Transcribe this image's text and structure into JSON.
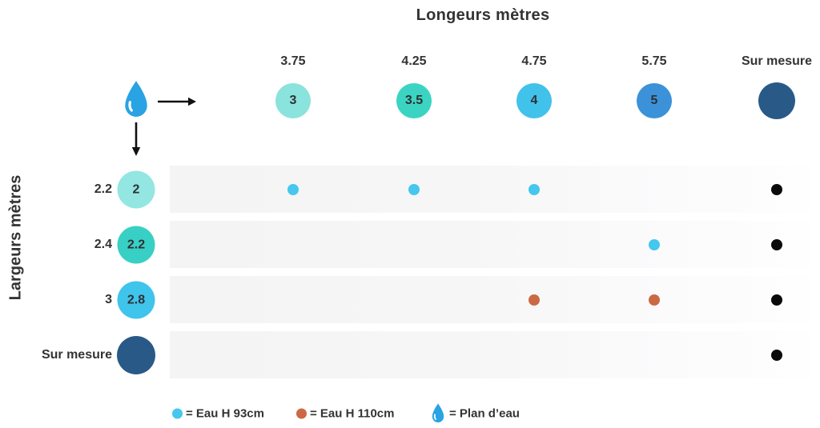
{
  "title": "Longeurs mètres",
  "y_axis_title": "Largeurs mètres",
  "columns": [
    {
      "header": "3.75",
      "bubble": "3",
      "color": "#8AE3DC"
    },
    {
      "header": "4.25",
      "bubble": "3.5",
      "color": "#3BD4C2"
    },
    {
      "header": "4.75",
      "bubble": "4",
      "color": "#41C2EB"
    },
    {
      "header": "5.75",
      "bubble": "5",
      "color": "#3B92D9"
    },
    {
      "header": "Sur mesure",
      "bubble": "",
      "color": "#295A87"
    }
  ],
  "rows": [
    {
      "label": "2.2",
      "bubble": "2",
      "color": "#93E6E1",
      "dots": [
        "cyan",
        "cyan",
        "cyan",
        null,
        "black"
      ]
    },
    {
      "label": "2.4",
      "bubble": "2.2",
      "color": "#38D0C4",
      "dots": [
        null,
        null,
        null,
        "cyan",
        "black"
      ]
    },
    {
      "label": "3",
      "bubble": "2.8",
      "color": "#3FC4EC",
      "dots": [
        null,
        null,
        "orange",
        "orange",
        "black"
      ]
    },
    {
      "label": "Sur mesure",
      "bubble": "",
      "color": "#295A87",
      "dots": [
        null,
        null,
        null,
        null,
        "black"
      ]
    }
  ],
  "dot_colors": {
    "cyan": "#45C7EE",
    "orange": "#CB6945",
    "black": "#0A0A0A"
  },
  "colors": {
    "drop_blue": "#29A3E3",
    "text": "#333333"
  },
  "legend": {
    "items": [
      {
        "icon": "cyan-dot-icon",
        "label": "= Eau H 93cm"
      },
      {
        "icon": "orange-dot-icon",
        "label": "= Eau H 110cm"
      },
      {
        "icon": "water-drop-icon",
        "label": "= Plan d’eau"
      }
    ]
  },
  "chart_data": {
    "type": "table",
    "title": "Longeurs mètres",
    "ylabel": "Largeurs mètres",
    "columns_length_m": [
      "3.75",
      "4.25",
      "4.75",
      "5.75",
      "Sur mesure"
    ],
    "column_water_length_m": [
      "3",
      "3.5",
      "4",
      "5",
      null
    ],
    "rows_width_m": [
      "2.2",
      "2.4",
      "3",
      "Sur mesure"
    ],
    "row_water_width_m": [
      "2",
      "2.2",
      "2.8",
      null
    ],
    "cells": [
      [
        "Eau H 93cm",
        "Eau H 93cm",
        "Eau H 93cm",
        "",
        "Sur mesure"
      ],
      [
        "",
        "",
        "",
        "Eau H 93cm",
        "Sur mesure"
      ],
      [
        "",
        "",
        "Eau H 110cm",
        "Eau H 110cm",
        "Sur mesure"
      ],
      [
        "",
        "",
        "",
        "",
        "Sur mesure"
      ]
    ],
    "legend_entries": [
      "Eau H 93cm",
      "Eau H 110cm",
      "Plan d’eau"
    ],
    "legend_position": "bottom"
  }
}
